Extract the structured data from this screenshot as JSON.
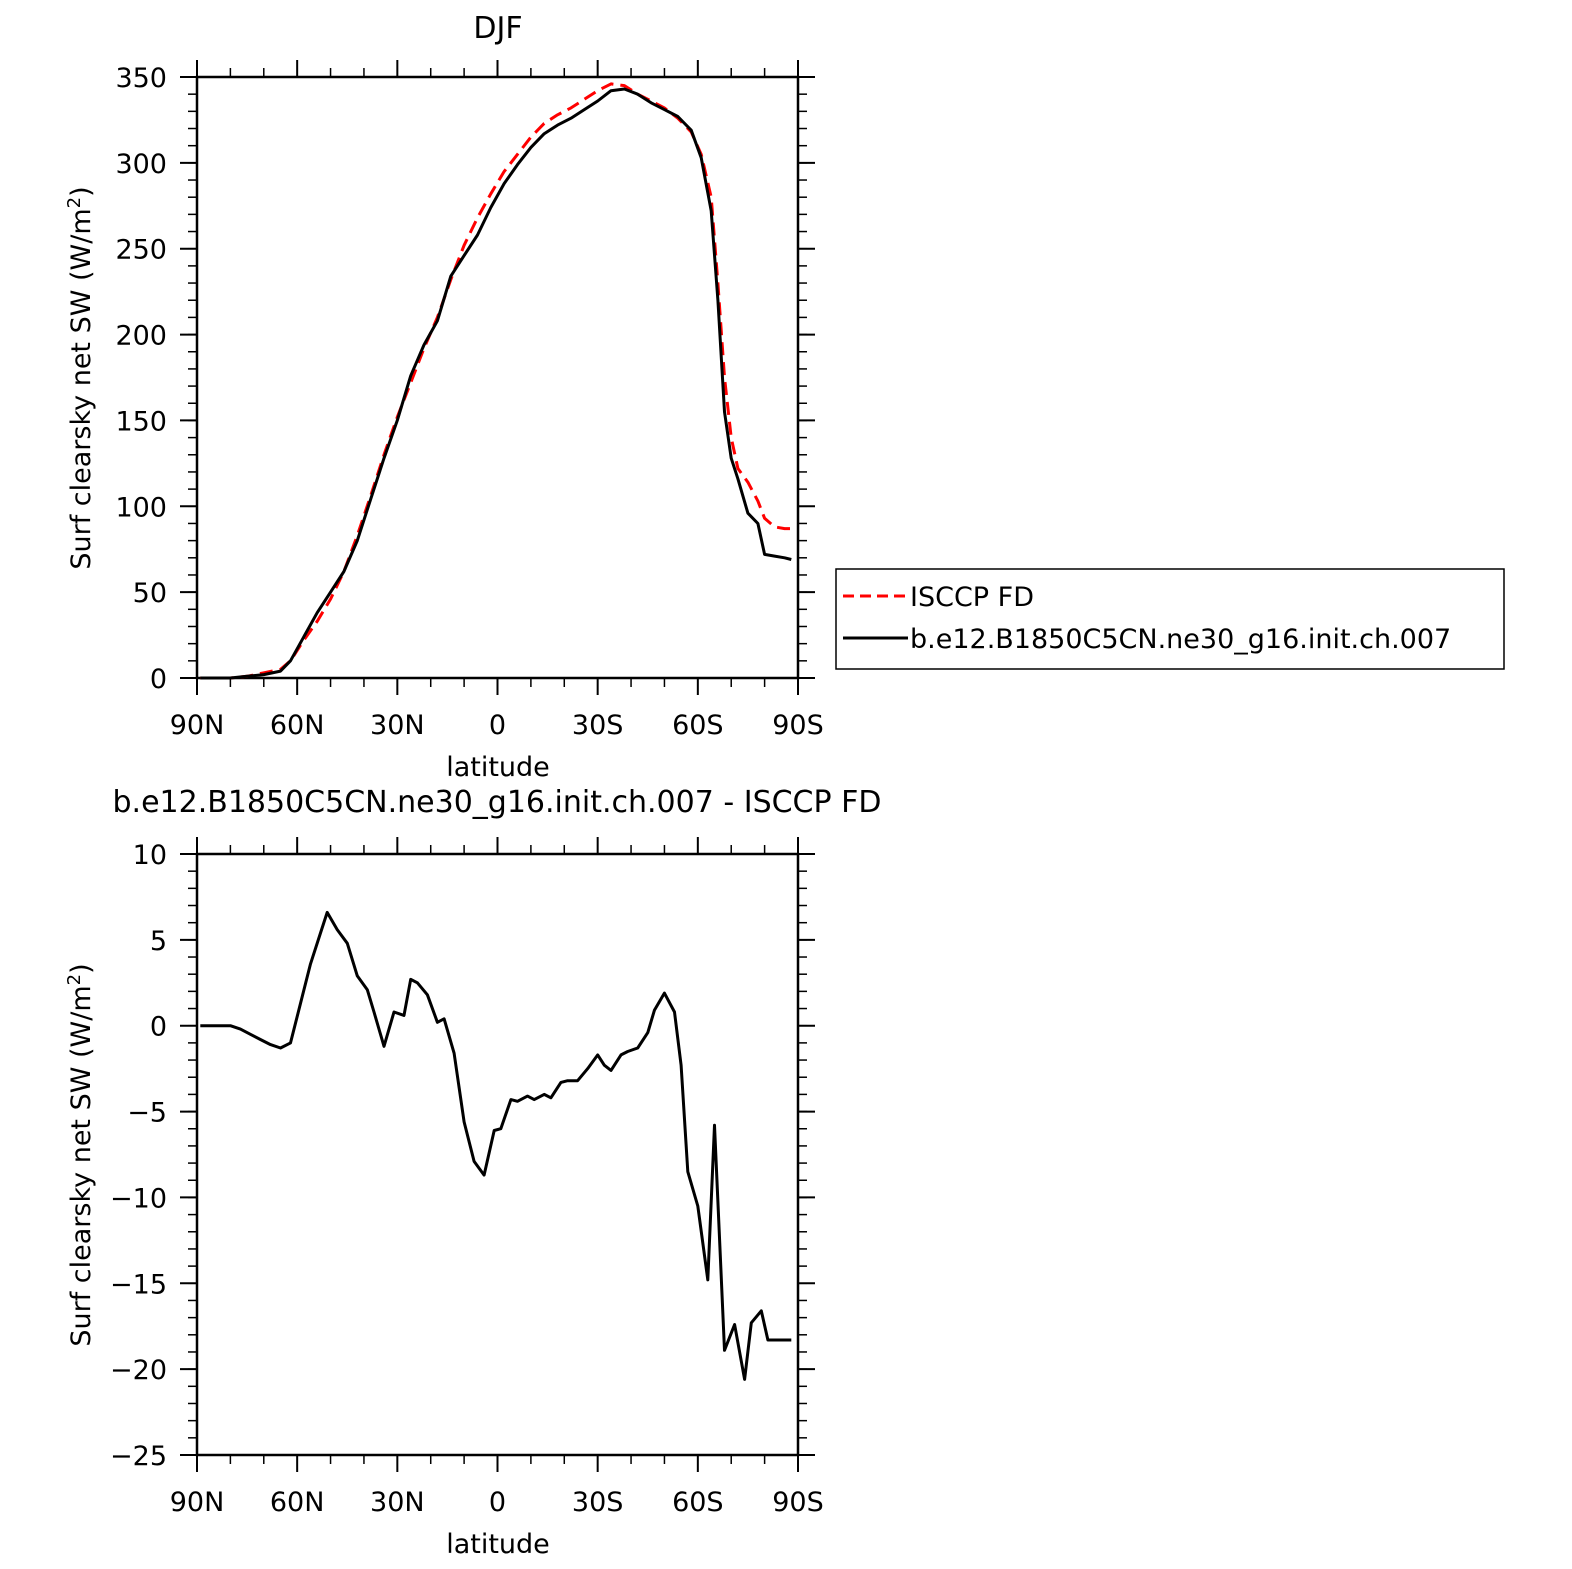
{
  "chart_data": [
    {
      "type": "line",
      "title": "DJF",
      "xlabel": "latitude",
      "ylabel": "Surf clearsky net SW (W/m²)",
      "ylabel_main": "Surf clearsky net SW (W/m",
      "ylabel_sup": "2",
      "ylabel_close": ")",
      "xlim": [
        90,
        -90
      ],
      "ylim": [
        0,
        350
      ],
      "x_ticks": [
        90,
        60,
        30,
        0,
        -30,
        -60,
        -90
      ],
      "x_tick_labels": [
        "90N",
        "60N",
        "30N",
        "0",
        "30S",
        "60S",
        "90S"
      ],
      "y_ticks": [
        0,
        50,
        100,
        150,
        200,
        250,
        300,
        350
      ],
      "y_tick_labels": [
        "0",
        "50",
        "100",
        "150",
        "200",
        "250",
        "300",
        "350"
      ],
      "legend_position": "right",
      "series": [
        {
          "name": "ISCCP FD",
          "color": "#ff0000",
          "dash": "dashed",
          "x": [
            89,
            85,
            80,
            75,
            70,
            65,
            62,
            58,
            54,
            50,
            46,
            42,
            38,
            34,
            30,
            26,
            22,
            18,
            14,
            10,
            6,
            2,
            -2,
            -6,
            -10,
            -14,
            -18,
            -22,
            -26,
            -30,
            -34,
            -38,
            -42,
            -46,
            -50,
            -54,
            -58,
            -61,
            -64,
            -66,
            -68,
            -70,
            -72,
            -75,
            -78,
            -80,
            -83,
            -86,
            -88
          ],
          "y": [
            0,
            0,
            0,
            1,
            3,
            5,
            10,
            22,
            33,
            46,
            62,
            83,
            106,
            130,
            152,
            172,
            192,
            210,
            232,
            252,
            268,
            282,
            295,
            305,
            315,
            323,
            328,
            332,
            337,
            342,
            346,
            345,
            340,
            336,
            332,
            326,
            318,
            305,
            280,
            230,
            175,
            140,
            122,
            114,
            103,
            93,
            88,
            87,
            87
          ]
        },
        {
          "name": "b.e12.B1850C5CN.ne30_g16.init.ch.007",
          "color": "#000000",
          "dash": "solid",
          "x": [
            89,
            85,
            80,
            75,
            70,
            65,
            62,
            58,
            54,
            50,
            46,
            42,
            38,
            34,
            30,
            26,
            22,
            18,
            14,
            10,
            6,
            2,
            -2,
            -6,
            -10,
            -14,
            -18,
            -22,
            -26,
            -30,
            -34,
            -38,
            -42,
            -46,
            -50,
            -54,
            -58,
            -61,
            -64,
            -66,
            -68,
            -70,
            -72,
            -75,
            -78,
            -80,
            -83,
            -86,
            -88
          ],
          "y": [
            0,
            0,
            0,
            1,
            2,
            4,
            10,
            24,
            38,
            50,
            62,
            80,
            104,
            128,
            150,
            176,
            194,
            208,
            234,
            246,
            258,
            274,
            288,
            299,
            309,
            317,
            322,
            326,
            331,
            336,
            342,
            343,
            340,
            335,
            331,
            327,
            319,
            303,
            272,
            220,
            155,
            128,
            116,
            96,
            90,
            72,
            71,
            70,
            69
          ]
        }
      ]
    },
    {
      "type": "line",
      "title": "b.e12.B1850C5CN.ne30_g16.init.ch.007 - ISCCP FD",
      "xlabel": "latitude",
      "ylabel": "Surf clearsky net SW (W/m²)",
      "ylabel_main": "Surf clearsky net SW (W/m",
      "ylabel_sup": "2",
      "ylabel_close": ")",
      "xlim": [
        90,
        -90
      ],
      "ylim": [
        -25,
        10
      ],
      "x_ticks": [
        90,
        60,
        30,
        0,
        -30,
        -60,
        -90
      ],
      "x_tick_labels": [
        "90N",
        "60N",
        "30N",
        "0",
        "30S",
        "60S",
        "90S"
      ],
      "y_ticks": [
        -25,
        -20,
        -15,
        -10,
        -5,
        0,
        5,
        10
      ],
      "y_tick_labels": [
        "−25",
        "−20",
        "−15",
        "−10",
        "−5",
        "0",
        "5",
        "10"
      ],
      "series": [
        {
          "color": "#000000",
          "dash": "solid",
          "x": [
            89,
            85,
            80,
            77,
            74,
            71,
            68,
            65,
            62,
            59,
            56,
            53,
            51,
            48,
            45,
            42,
            39,
            37,
            34,
            31,
            28,
            26,
            24,
            21,
            18,
            16,
            13,
            10,
            7,
            4,
            1,
            -1,
            -4,
            -6,
            -9,
            -11,
            -14,
            -16,
            -19,
            -21,
            -24,
            -27,
            -30,
            -32,
            -34,
            -37,
            -39,
            -42,
            -45,
            -47,
            -50,
            -53,
            -55,
            -57,
            -60,
            -63,
            -65,
            -68,
            -71,
            -74,
            -76,
            -79,
            -81,
            -83,
            -86,
            -88
          ],
          "y": [
            0,
            0,
            0,
            -0.2,
            -0.5,
            -0.8,
            -1.1,
            -1.3,
            -1,
            1.3,
            3.6,
            5.4,
            6.6,
            5.6,
            4.8,
            2.9,
            2.1,
            0.8,
            -1.2,
            0.8,
            0.6,
            2.7,
            2.5,
            1.8,
            0.2,
            0.4,
            -1.6,
            -5.6,
            -7.9,
            -8.7,
            -6.1,
            -6,
            -4.3,
            -4.4,
            -4.1,
            -4.3,
            -4,
            -4.2,
            -3.3,
            -3.2,
            -3.2,
            -2.5,
            -1.7,
            -2.3,
            -2.6,
            -1.7,
            -1.5,
            -1.3,
            -0.4,
            0.9,
            1.9,
            0.8,
            -2.3,
            -8.5,
            -10.5,
            -14.8,
            -5.8,
            -18.9,
            -17.4,
            -20.6,
            -17.3,
            -16.6,
            -18.3,
            -18.3,
            -18.3,
            -18.3
          ]
        }
      ]
    }
  ]
}
